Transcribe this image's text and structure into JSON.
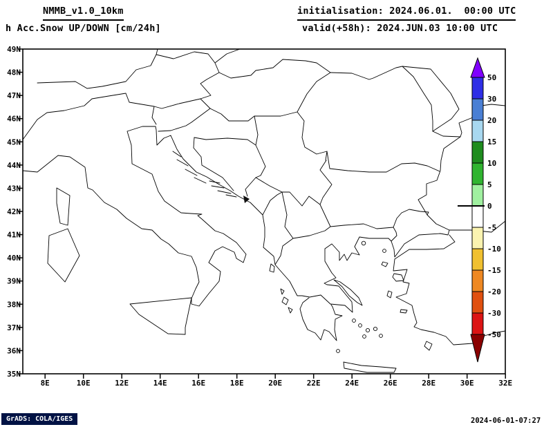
{
  "header": {
    "model_line": "NMMB_v1.0_10km",
    "param_line": "h Acc.Snow UP/DOWN [cm/24h]",
    "init_line": "initialisation: 2024.06.01.  00:00 UTC",
    "valid_line": "valid(+58h): 2024.JUN.03 10:00 UTC"
  },
  "map": {
    "lat_labels": [
      "49N",
      "48N",
      "47N",
      "46N",
      "45N",
      "44N",
      "43N",
      "42N",
      "41N",
      "40N",
      "39N",
      "38N",
      "37N",
      "36N",
      "35N"
    ],
    "lon_labels": [
      "8E",
      "10E",
      "12E",
      "14E",
      "16E",
      "18E",
      "20E",
      "22E",
      "24E",
      "26E",
      "28E",
      "30E",
      "32E"
    ]
  },
  "colorbar": {
    "levels": [
      50,
      30,
      20,
      15,
      10,
      5,
      0,
      -5,
      -10,
      -15,
      -20,
      -30,
      -50
    ],
    "segment_colors": [
      "#2e2ee6",
      "#4a7fd4",
      "#a8d8f0",
      "#1e8c1e",
      "#30b430",
      "#a0f0a0",
      "#ffffff",
      "#faf3b0",
      "#f0c030",
      "#ee8822",
      "#e05010",
      "#dc1414"
    ],
    "arrow_top_color": "#8000ff",
    "arrow_bottom_color": "#8b0000",
    "zero_level": 0
  },
  "footer": {
    "grads_credit": "GrADS: COLA/IGES",
    "timestamp": "2024-06-01-07:27"
  }
}
